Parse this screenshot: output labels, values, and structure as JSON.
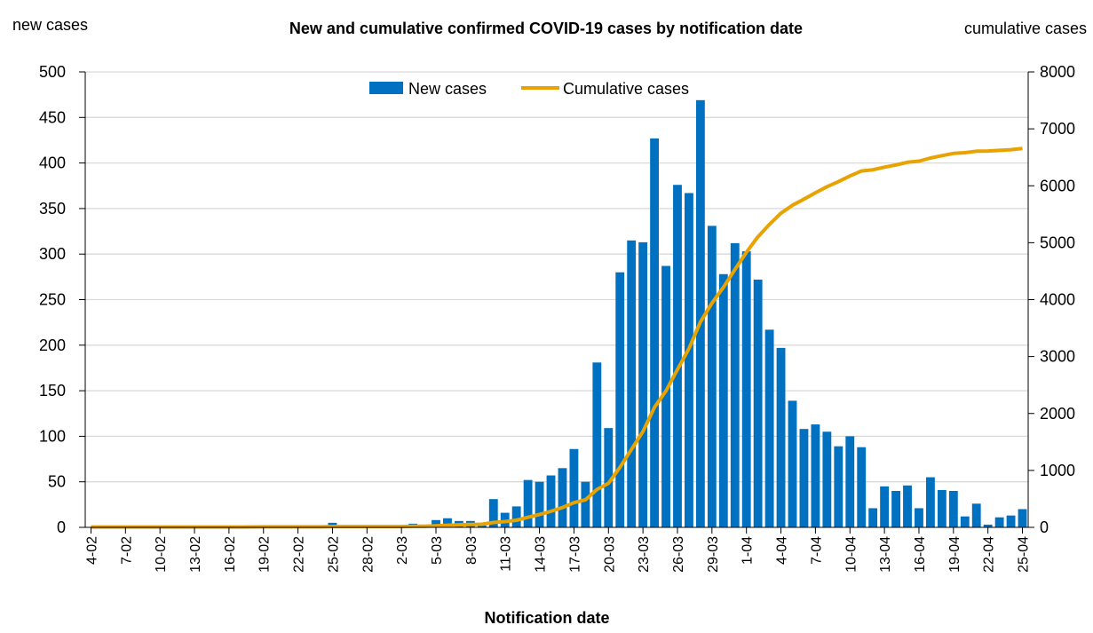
{
  "chart_data": {
    "type": "bar",
    "title": "New and cumulative confirmed COVID-19 cases by notification date",
    "xlabel": "Notification date",
    "ylabel_left": "new cases",
    "ylabel_right": "cumulative cases",
    "ylim_left": [
      0,
      500
    ],
    "ylim_right": [
      0,
      8000
    ],
    "yticks_left": [
      "0",
      "50",
      "100",
      "150",
      "200",
      "250",
      "300",
      "350",
      "400",
      "450",
      "500"
    ],
    "yticks_right": [
      "0",
      "1000",
      "2000",
      "3000",
      "4000",
      "5000",
      "6000",
      "7000",
      "8000"
    ],
    "grid": true,
    "legend_position": "top-center",
    "categories": [
      "4-02",
      "5-02",
      "6-02",
      "7-02",
      "8-02",
      "9-02",
      "10-02",
      "11-02",
      "12-02",
      "13-02",
      "14-02",
      "15-02",
      "16-02",
      "17-02",
      "18-02",
      "19-02",
      "20-02",
      "21-02",
      "22-02",
      "23-02",
      "24-02",
      "25-02",
      "26-02",
      "27-02",
      "28-02",
      "29-02",
      "1-03",
      "2-03",
      "3-03",
      "4-03",
      "5-03",
      "6-03",
      "7-03",
      "8-03",
      "9-03",
      "10-03",
      "11-03",
      "12-03",
      "13-03",
      "14-03",
      "15-03",
      "16-03",
      "17-03",
      "18-03",
      "19-03",
      "20-03",
      "21-03",
      "22-03",
      "23-03",
      "24-03",
      "25-03",
      "26-03",
      "27-03",
      "28-03",
      "29-03",
      "30-03",
      "31-03",
      "1-04",
      "2-04",
      "3-04",
      "4-04",
      "5-04",
      "6-04",
      "7-04",
      "8-04",
      "9-04",
      "10-04",
      "11-04",
      "12-04",
      "13-04",
      "14-04",
      "15-04",
      "16-04",
      "17-04",
      "18-04",
      "19-04",
      "20-04",
      "21-04",
      "22-04",
      "23-04",
      "24-04",
      "25-04"
    ],
    "xtick_labels": [
      "4-02",
      "7-02",
      "10-02",
      "13-02",
      "16-02",
      "19-02",
      "22-02",
      "25-02",
      "28-02",
      "2-03",
      "5-03",
      "8-03",
      "11-03",
      "14-03",
      "17-03",
      "20-03",
      "23-03",
      "26-03",
      "29-03",
      "1-04",
      "4-04",
      "7-04",
      "10-04",
      "13-04",
      "16-04",
      "19-04",
      "22-04",
      "25-04"
    ],
    "series": [
      {
        "name": "New cases",
        "type": "bar",
        "axis": "left",
        "color": "#0070C0",
        "values": [
          0,
          0,
          0,
          0,
          0,
          0,
          0,
          0,
          0,
          0,
          0,
          0,
          0,
          1,
          1,
          1,
          0,
          0,
          0,
          0,
          0,
          5,
          0,
          0,
          0,
          0,
          0,
          0,
          4,
          2,
          8,
          10,
          7,
          7,
          2,
          31,
          16,
          23,
          52,
          50,
          57,
          65,
          86,
          50,
          181,
          109,
          280,
          315,
          313,
          427,
          287,
          376,
          367,
          469,
          331,
          278,
          312,
          303,
          272,
          217,
          197,
          139,
          108,
          113,
          105,
          89,
          100,
          88,
          21,
          45,
          40,
          46,
          21,
          55,
          41,
          40,
          12,
          26,
          3,
          11,
          13,
          20
        ]
      },
      {
        "name": "Cumulative cases",
        "type": "line",
        "axis": "right",
        "color": "#E8A300",
        "values": [
          6,
          6,
          6,
          6,
          6,
          6,
          6,
          6,
          6,
          6,
          6,
          6,
          6,
          7,
          8,
          9,
          9,
          9,
          9,
          9,
          9,
          14,
          14,
          14,
          14,
          14,
          14,
          14,
          18,
          20,
          28,
          38,
          45,
          52,
          54,
          85,
          101,
          124,
          176,
          226,
          283,
          348,
          434,
          484,
          665,
          774,
          1054,
          1369,
          1682,
          2109,
          2396,
          2772,
          3139,
          3608,
          3939,
          4217,
          4529,
          4832,
          5104,
          5321,
          5518,
          5657,
          5765,
          5878,
          5983,
          6072,
          6172,
          6260,
          6281,
          6326,
          6366,
          6412,
          6433,
          6488,
          6529,
          6569,
          6581,
          6607,
          6610,
          6621,
          6634,
          6654
        ]
      }
    ]
  }
}
